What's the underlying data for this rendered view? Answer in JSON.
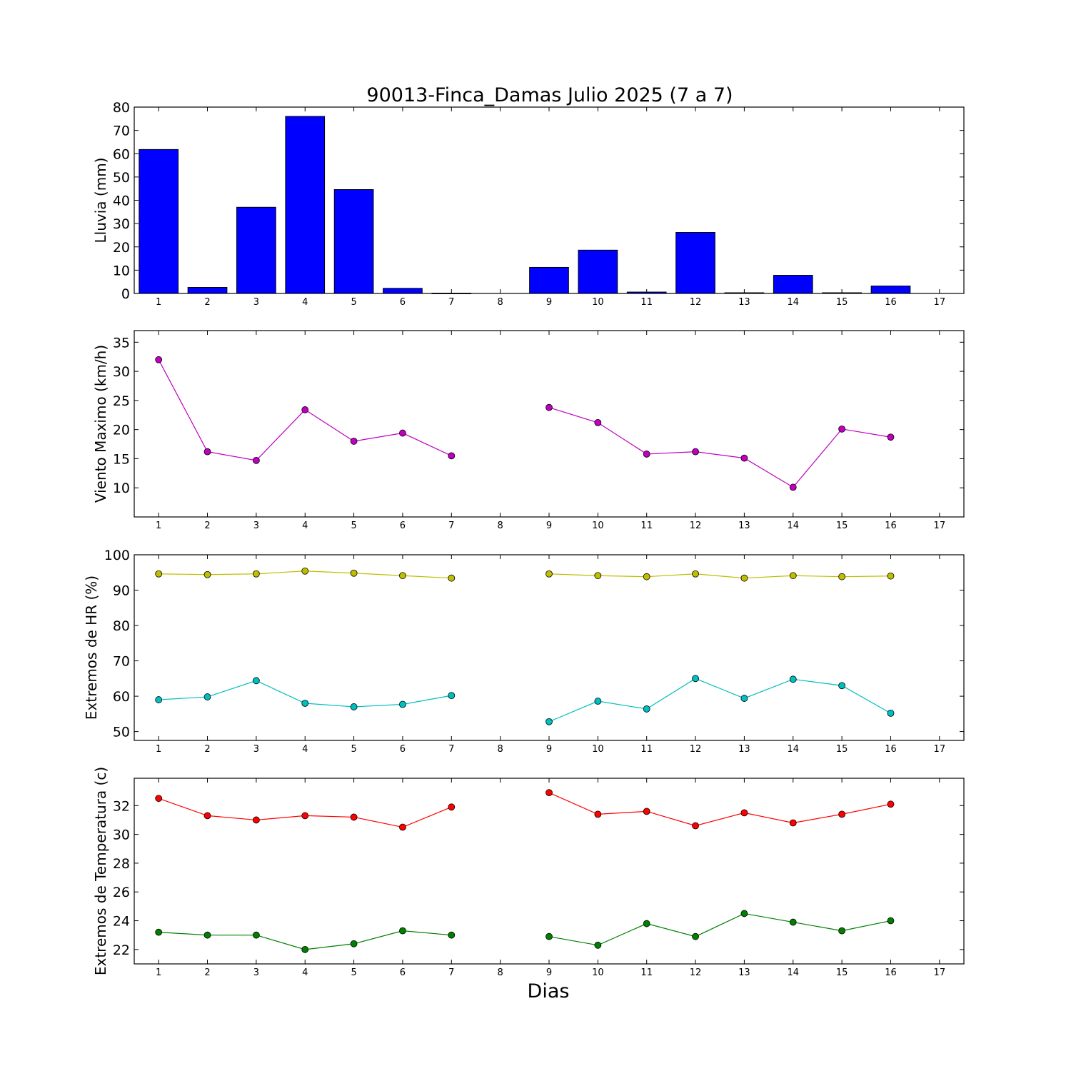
{
  "chart_data": {
    "title": "90013-Finca_Damas Julio 2025  (7 a 7)",
    "xlabel": "Dias",
    "x_ticks": [
      1,
      2,
      3,
      4,
      5,
      6,
      7,
      8,
      9,
      10,
      11,
      12,
      13,
      14,
      15,
      16,
      17
    ],
    "panels": [
      {
        "type": "bar",
        "ylabel": "Lluvia (mm)",
        "ylim": [
          0,
          80
        ],
        "yticks": [
          0,
          10,
          20,
          30,
          40,
          50,
          60,
          70,
          80
        ],
        "series": [
          {
            "color": "#0000ff",
            "x": [
              1,
              2,
              3,
              4,
              5,
              6,
              7,
              8,
              9,
              10,
              11,
              12,
              13,
              14,
              15,
              16,
              17
            ],
            "values": [
              61.8,
              2.6,
              37.0,
              76.0,
              44.6,
              2.2,
              0.1,
              0,
              11.2,
              18.6,
              0.6,
              26.2,
              0.3,
              7.8,
              0.3,
              3.2,
              0
            ]
          }
        ]
      },
      {
        "type": "line",
        "ylabel": "Viento Maximo (km/h)",
        "ylim": [
          5,
          37
        ],
        "yticks": [
          10,
          15,
          20,
          25,
          30,
          35
        ],
        "series": [
          {
            "color": "#bf00bf",
            "x": [
              1,
              2,
              3,
              4,
              5,
              6,
              7,
              8,
              9,
              10,
              11,
              12,
              13,
              14,
              15,
              16
            ],
            "values": [
              32.0,
              16.2,
              14.7,
              23.4,
              18.0,
              19.4,
              15.5,
              null,
              23.8,
              21.2,
              15.8,
              16.2,
              15.1,
              10.1,
              20.1,
              18.7
            ]
          }
        ]
      },
      {
        "type": "line",
        "ylabel": "Extremos de HR (%)",
        "ylim": [
          47.5,
          100
        ],
        "yticks": [
          50,
          60,
          70,
          80,
          90,
          100
        ],
        "series": [
          {
            "color": "#bfbf00",
            "x": [
              1,
              2,
              3,
              4,
              5,
              6,
              7,
              8,
              9,
              10,
              11,
              12,
              13,
              14,
              15,
              16
            ],
            "values": [
              94.6,
              94.4,
              94.6,
              95.4,
              94.8,
              94.1,
              93.4,
              null,
              94.6,
              94.1,
              93.8,
              94.6,
              93.4,
              94.1,
              93.8,
              94.0
            ]
          },
          {
            "color": "#00bfbf",
            "x": [
              1,
              2,
              3,
              4,
              5,
              6,
              7,
              8,
              9,
              10,
              11,
              12,
              13,
              14,
              15,
              16
            ],
            "values": [
              59.0,
              59.8,
              64.4,
              58.0,
              57.0,
              57.7,
              60.2,
              null,
              52.8,
              58.6,
              56.4,
              65.0,
              59.4,
              64.8,
              63.0,
              55.2
            ]
          }
        ]
      },
      {
        "type": "line",
        "ylabel": "Extremos de Temperatura (c)",
        "ylim": [
          21.0,
          33.9
        ],
        "yticks": [
          22,
          24,
          26,
          28,
          30,
          32
        ],
        "series": [
          {
            "color": "#ff0000",
            "x": [
              1,
              2,
              3,
              4,
              5,
              6,
              7,
              8,
              9,
              10,
              11,
              12,
              13,
              14,
              15,
              16
            ],
            "values": [
              32.5,
              31.3,
              31.0,
              31.3,
              31.2,
              30.5,
              31.9,
              null,
              32.9,
              31.4,
              31.6,
              30.6,
              31.5,
              30.8,
              31.4,
              32.1
            ]
          },
          {
            "color": "#007f00",
            "x": [
              1,
              2,
              3,
              4,
              5,
              6,
              7,
              8,
              9,
              10,
              11,
              12,
              13,
              14,
              15,
              16
            ],
            "values": [
              23.2,
              23.0,
              23.0,
              22.0,
              22.4,
              23.3,
              23.0,
              null,
              22.9,
              22.3,
              23.8,
              22.9,
              24.5,
              23.9,
              23.3,
              24.0
            ]
          }
        ]
      }
    ]
  }
}
